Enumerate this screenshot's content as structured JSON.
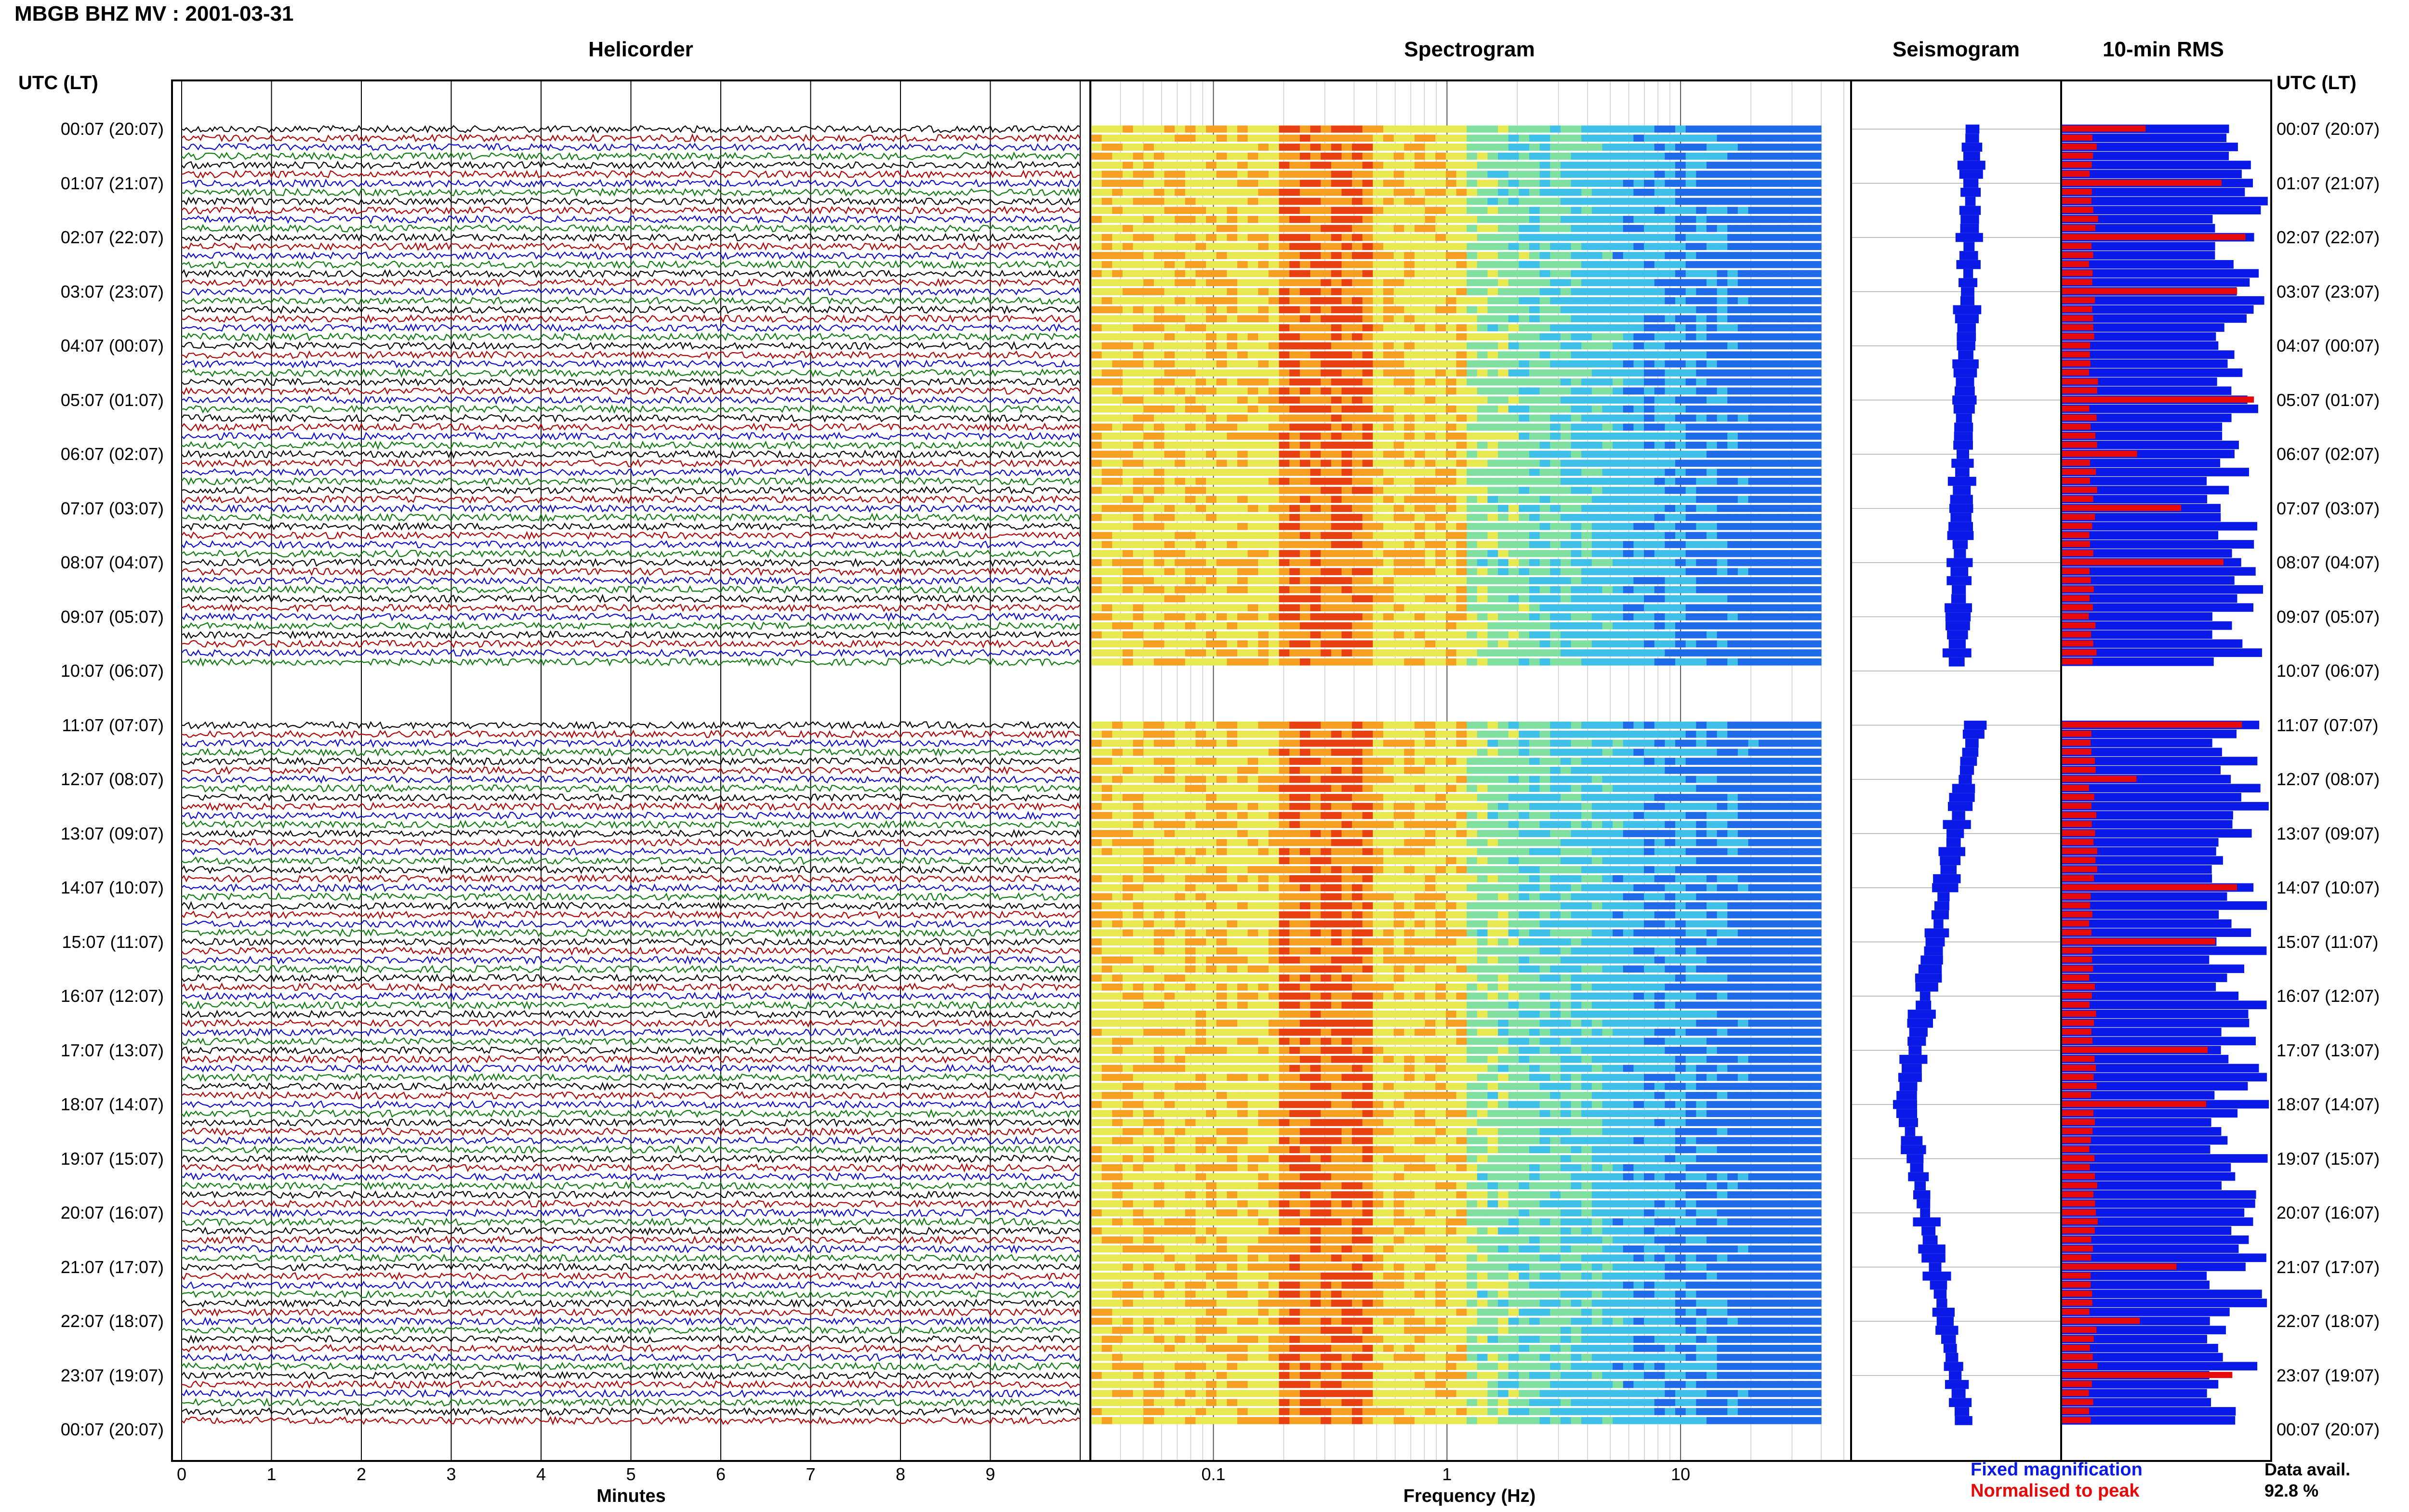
{
  "header": {
    "station_title": "MBGB BHZ MV : 2001-03-31"
  },
  "panels": {
    "helicorder": "Helicorder",
    "spectrogram": "Spectrogram",
    "seismogram": "Seismogram",
    "rms": "10-min RMS"
  },
  "axis_headers": {
    "left": "UTC (LT)",
    "right": "UTC (LT)"
  },
  "time_labels": [
    "00:07 (20:07)",
    "01:07 (21:07)",
    "02:07 (22:07)",
    "03:07 (23:07)",
    "04:07 (00:07)",
    "05:07 (01:07)",
    "06:07 (02:07)",
    "07:07 (03:07)",
    "08:07 (04:07)",
    "09:07 (05:07)",
    "10:07 (06:07)",
    "11:07 (07:07)",
    "12:07 (08:07)",
    "13:07 (09:07)",
    "14:07 (10:07)",
    "15:07 (11:07)",
    "16:07 (12:07)",
    "17:07 (13:07)",
    "18:07 (14:07)",
    "19:07 (15:07)",
    "20:07 (16:07)",
    "21:07 (17:07)",
    "22:07 (18:07)",
    "23:07 (19:07)",
    "00:07 (20:07)"
  ],
  "x_axes": {
    "helicorder_xlabel": "Minutes",
    "helicorder_ticks": [
      "0",
      "1",
      "2",
      "3",
      "4",
      "5",
      "6",
      "7",
      "8",
      "9"
    ],
    "spectrogram_xlabel": "Frequency (Hz)",
    "spectrogram_ticks": [
      "0.1",
      "1",
      "10"
    ]
  },
  "legend": {
    "fixed": "Fixed magnification",
    "normalised": "Normalised to peak"
  },
  "availability": {
    "label": "Data avail.",
    "value": "92.8 %"
  },
  "colors": {
    "trace_colors": [
      "#000000",
      "#b00000",
      "#0a0ad0",
      "#0a7a0a"
    ],
    "fixed_bar": "#0a1ae6",
    "normalised_bar": "#e60a0a",
    "gap_row": "#ffffff"
  },
  "chart_data": {
    "type": "heatmap",
    "date": "2001-03-31",
    "helicorder_minutes_range": [
      0,
      10
    ],
    "spectrogram_frequency_range_hz": [
      0.03,
      40
    ],
    "spectrogram_x_scale": "log",
    "rows_per_hour": 6,
    "data_gap_utc": "10:07–11:07",
    "data_availability_percent": 92.8
  }
}
